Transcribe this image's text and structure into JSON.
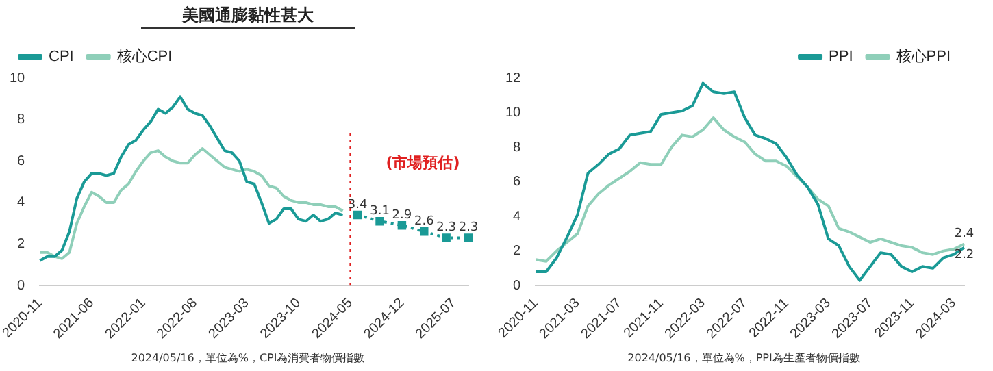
{
  "chart_data": [
    {
      "type": "line",
      "title": "美國通膨黏性甚大",
      "annotations": [
        "2024/05/16，單位為%，CPI為消費者物價指數"
      ],
      "categories": [
        "2020-11",
        null,
        null,
        null,
        null,
        null,
        null,
        "2021-06",
        null,
        null,
        null,
        null,
        null,
        null,
        "2022-01",
        null,
        null,
        null,
        null,
        null,
        null,
        "2022-08",
        null,
        null,
        null,
        null,
        null,
        null,
        "2023-03",
        null,
        null,
        null,
        null,
        null,
        null,
        "2023-10",
        null,
        null,
        null,
        null,
        null,
        null,
        "2024-05",
        null,
        null,
        null,
        null,
        null,
        null,
        "2024-12",
        null,
        null,
        null,
        null,
        null,
        null,
        "2025-07",
        null,
        null
      ],
      "series": [
        {
          "name": "CPI",
          "color": "#1a9a96",
          "values": [
            1.2,
            1.4,
            1.4,
            1.7,
            2.6,
            4.2,
            5.0,
            5.4,
            5.4,
            5.3,
            5.4,
            6.2,
            6.8,
            7.0,
            7.5,
            7.9,
            8.5,
            8.3,
            8.6,
            9.1,
            8.5,
            8.3,
            8.2,
            7.7,
            7.1,
            6.5,
            6.4,
            6.0,
            5.0,
            4.9,
            4.0,
            3.0,
            3.2,
            3.7,
            3.7,
            3.2,
            3.1,
            3.4,
            3.1,
            3.2,
            3.5,
            3.4,
            null,
            null,
            null,
            null,
            null,
            null,
            null,
            null,
            null,
            null,
            null,
            null,
            null,
            null,
            null,
            null,
            null
          ]
        },
        {
          "name": "核心CPI",
          "color": "#8fcfb9",
          "values": [
            1.6,
            1.6,
            1.4,
            1.3,
            1.6,
            3.0,
            3.8,
            4.5,
            4.3,
            4.0,
            4.0,
            4.6,
            4.9,
            5.5,
            6.0,
            6.4,
            6.5,
            6.2,
            6.0,
            5.9,
            5.9,
            6.3,
            6.6,
            6.3,
            6.0,
            5.7,
            5.6,
            5.5,
            5.6,
            5.5,
            5.3,
            4.8,
            4.7,
            4.3,
            4.1,
            4.0,
            4.0,
            3.9,
            3.9,
            3.8,
            3.8,
            3.6,
            null,
            null,
            null,
            null,
            null,
            null,
            null,
            null,
            null,
            null,
            null,
            null,
            null,
            null,
            null,
            null,
            null
          ]
        },
        {
          "color": "#1a9a96",
          "line_style": "dotted",
          "marker": "square",
          "values": [
            null,
            null,
            null,
            null,
            null,
            null,
            null,
            null,
            null,
            null,
            null,
            null,
            null,
            null,
            null,
            null,
            null,
            null,
            null,
            null,
            null,
            null,
            null,
            null,
            null,
            null,
            null,
            null,
            null,
            null,
            null,
            null,
            null,
            null,
            null,
            null,
            null,
            null,
            null,
            null,
            null,
            null,
            null,
            3.4,
            null,
            null,
            3.1,
            null,
            null,
            2.9,
            null,
            null,
            2.6,
            null,
            null,
            2.3,
            null,
            null,
            2.3
          ],
          "value_labels": [
            null,
            null,
            null,
            null,
            null,
            null,
            null,
            null,
            null,
            null,
            null,
            null,
            null,
            null,
            null,
            null,
            null,
            null,
            null,
            null,
            null,
            null,
            null,
            null,
            null,
            null,
            null,
            null,
            null,
            null,
            null,
            null,
            null,
            null,
            null,
            null,
            null,
            null,
            null,
            null,
            null,
            null,
            null,
            "3.4",
            null,
            null,
            "3.1",
            null,
            null,
            "2.9",
            null,
            null,
            "2.6",
            null,
            null,
            "2.3",
            null,
            null,
            "2.3"
          ]
        }
      ],
      "ref_lines": [
        {
          "axis": "x",
          "value": "2024-05",
          "label": "(市場預估)",
          "color": "#e02020",
          "line_style": "dotted"
        }
      ],
      "ylim": [
        0,
        10
      ],
      "yticks": [
        0,
        2,
        4,
        6,
        8,
        10
      ],
      "grid": false,
      "legend": "top left",
      "marker": "none",
      "line_style": "solid"
    },
    {
      "type": "line",
      "annotations": [
        "2024/05/16，單位為%，PPI為生產者物價指數"
      ],
      "categories": [
        "2020-11",
        null,
        null,
        null,
        "2021-03",
        null,
        null,
        null,
        "2021-07",
        null,
        null,
        null,
        "2021-11",
        null,
        null,
        null,
        "2022-03",
        null,
        null,
        null,
        "2022-07",
        null,
        null,
        null,
        "2022-11",
        null,
        null,
        null,
        "2023-03",
        null,
        null,
        null,
        "2023-07",
        null,
        null,
        null,
        "2023-11",
        null,
        null,
        null,
        "2024-03",
        null
      ],
      "series": [
        {
          "name": "PPI",
          "color": "#1a9a96",
          "values": [
            0.8,
            0.8,
            1.6,
            2.8,
            4.1,
            6.5,
            7.0,
            7.6,
            7.9,
            8.7,
            8.8,
            8.9,
            9.9,
            10.0,
            10.1,
            10.4,
            11.7,
            11.2,
            11.1,
            11.2,
            9.7,
            8.7,
            8.5,
            8.2,
            7.4,
            6.4,
            5.7,
            4.7,
            2.7,
            2.3,
            1.1,
            0.3,
            1.1,
            1.9,
            1.8,
            1.1,
            0.8,
            1.1,
            1.0,
            1.6,
            1.8,
            2.2
          ],
          "value_labels": [
            null,
            null,
            null,
            null,
            null,
            null,
            null,
            null,
            null,
            null,
            null,
            null,
            null,
            null,
            null,
            null,
            null,
            null,
            null,
            null,
            null,
            null,
            null,
            null,
            null,
            null,
            null,
            null,
            null,
            null,
            null,
            null,
            null,
            null,
            null,
            null,
            null,
            null,
            null,
            null,
            null,
            "2.2"
          ]
        },
        {
          "name": "核心PPI",
          "color": "#8fcfb9",
          "values": [
            1.5,
            1.4,
            2.0,
            2.5,
            3.0,
            4.6,
            5.3,
            5.8,
            6.2,
            6.6,
            7.1,
            7.0,
            7.0,
            8.0,
            8.7,
            8.6,
            9.0,
            9.7,
            9.0,
            8.6,
            8.3,
            7.6,
            7.2,
            7.2,
            6.9,
            6.3,
            5.7,
            5.0,
            4.6,
            3.3,
            3.1,
            2.8,
            2.5,
            2.7,
            2.5,
            2.3,
            2.2,
            1.9,
            1.8,
            2.0,
            2.1,
            2.4
          ],
          "value_labels": [
            null,
            null,
            null,
            null,
            null,
            null,
            null,
            null,
            null,
            null,
            null,
            null,
            null,
            null,
            null,
            null,
            null,
            null,
            null,
            null,
            null,
            null,
            null,
            null,
            null,
            null,
            null,
            null,
            null,
            null,
            null,
            null,
            null,
            null,
            null,
            null,
            null,
            null,
            null,
            null,
            null,
            "2.4"
          ]
        }
      ],
      "ylim": [
        0,
        12
      ],
      "yticks": [
        0,
        2,
        4,
        6,
        8,
        10,
        12
      ],
      "grid": false,
      "legend": "top right",
      "marker": "none",
      "line_style": "solid"
    }
  ]
}
